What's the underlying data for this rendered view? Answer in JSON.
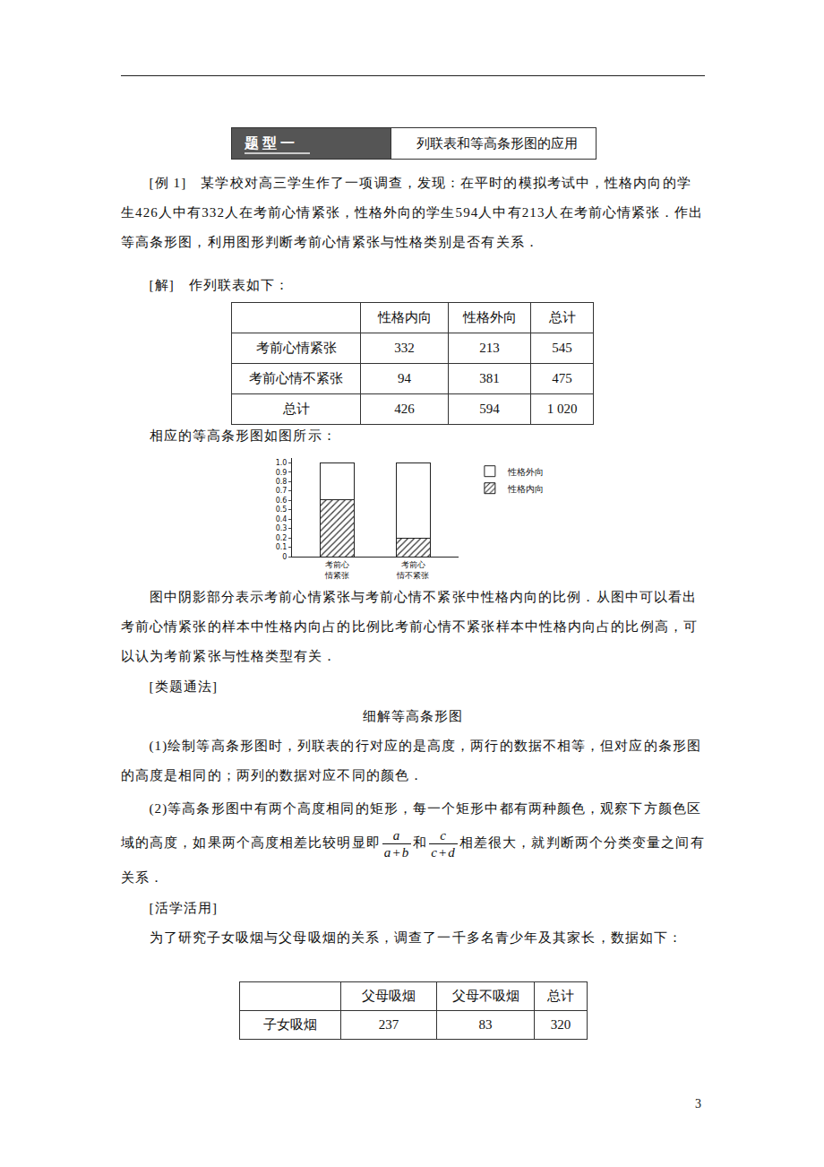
{
  "header": {
    "badge": "题型一",
    "title": "列联表和等高条形图的应用"
  },
  "example": {
    "label": "[例 1]",
    "text": "某学校对高三学生作了一项调查，发现：在平时的模拟考试中，性格内向的学生426人中有332人在考前心情紧张，性格外向的学生594人中有213人在考前心情紧张．作出等高条形图，利用图形判断考前心情紧张与性格类别是否有关系．"
  },
  "solution": {
    "label": "[解]",
    "text": "作列联表如下："
  },
  "table1": {
    "header": [
      null,
      "性格内向",
      "性格外向",
      "总计"
    ],
    "rows": [
      [
        "考前心情紧张",
        332,
        213,
        545
      ],
      [
        "考前心情不紧张",
        94,
        381,
        475
      ],
      [
        "总计",
        426,
        594,
        "1 020"
      ]
    ]
  },
  "chart_intro": "相应的等高条形图如图所示：",
  "chart_data": {
    "type": "bar",
    "stacked": true,
    "categories": [
      "考前心\n情紧张",
      "考前心\n情不紧张"
    ],
    "series": [
      {
        "name": "性格内向",
        "color": "#ffffff",
        "marker": "hatch",
        "values": [
          0.61,
          0.2
        ]
      },
      {
        "name": "性格外向",
        "color": "#ffffff",
        "values": [
          0.39,
          0.8
        ]
      }
    ],
    "ylim": [
      0,
      1.05
    ],
    "yticks": [
      0,
      0.1,
      0.2,
      0.3,
      0.4,
      0.5,
      0.6,
      0.7,
      0.8,
      0.9,
      {
        "value": 1,
        "label": "1.0"
      }
    ],
    "grid": false,
    "legend": "right"
  },
  "paragraph": "图中阴影部分表示考前心情紧张与考前心情不紧张中性格内向的比例．从图中可以看出考前心情紧张的样本中性格内向占的比例比考前心情不紧张样本中性格内向占的比例高，可以认为考前紧张与性格类型有关．",
  "method": {
    "label": "[类题通法]",
    "title": "细解等高条形图",
    "items": [
      [
        "(1)绘制等高条形图时，列联表的行对应的是高度，两行的数据不相等，但对应的条形图的高度是相同的；两列的数据对应不同的颜色．"
      ],
      [
        "(2)等高条形图中有两个高度相同的矩形，每一个矩形中都有两种颜色，观察下方颜色区域的高度，如果两个高度相差比较明显即",
        {
          "num": "a",
          "den": "a+b"
        },
        "和",
        {
          "num": "c",
          "den": "c+d"
        },
        "相差很大，就判断两个分类变量之间有关系．"
      ]
    ]
  },
  "practice": {
    "label": "[活学活用]",
    "text": "为了研究子女吸烟与父母吸烟的关系，调查了一千多名青少年及其家长，数据如下：",
    "table": {
      "header": [
        null,
        "父母吸烟",
        "父母不吸烟",
        "总计"
      ],
      "rows": [
        [
          "子女吸烟",
          237,
          83,
          320
        ]
      ]
    }
  },
  "page_number": 3
}
